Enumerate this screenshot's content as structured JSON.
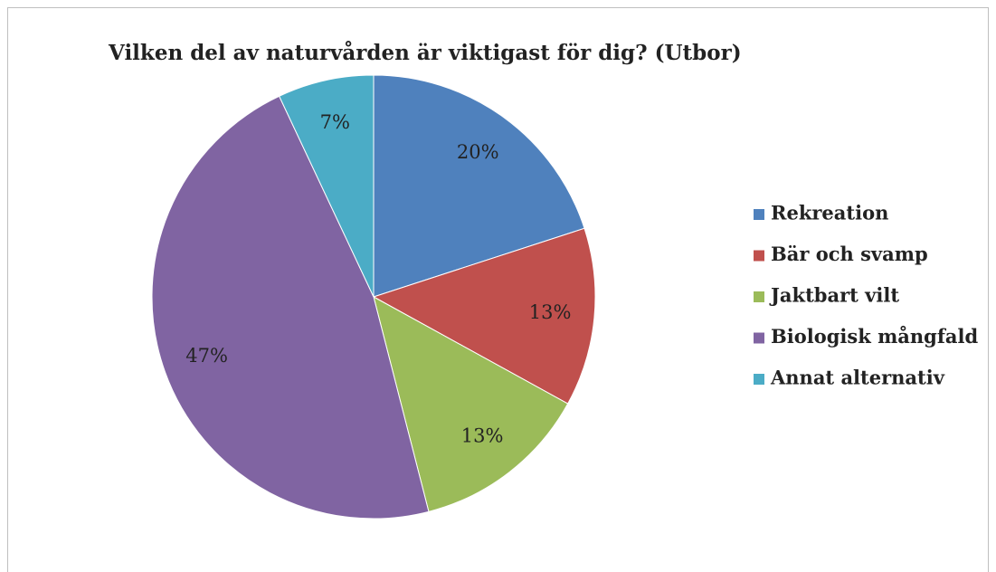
{
  "chart_data": {
    "type": "pie",
    "title": "Vilken del av naturvården är viktigast för dig? (Utbor)",
    "categories": [
      "Rekreation",
      "Bär och svamp",
      "Jaktbart vilt",
      "Biologisk mångfald",
      "Annat alternativ"
    ],
    "values": [
      20,
      13,
      13,
      47,
      7
    ],
    "value_labels": [
      "20%",
      "13%",
      "13%",
      "47%",
      "7%"
    ],
    "colors": [
      "#4F81BD",
      "#C0504D",
      "#9BBB59",
      "#8064A2",
      "#4BACC6"
    ],
    "legend": "right"
  }
}
